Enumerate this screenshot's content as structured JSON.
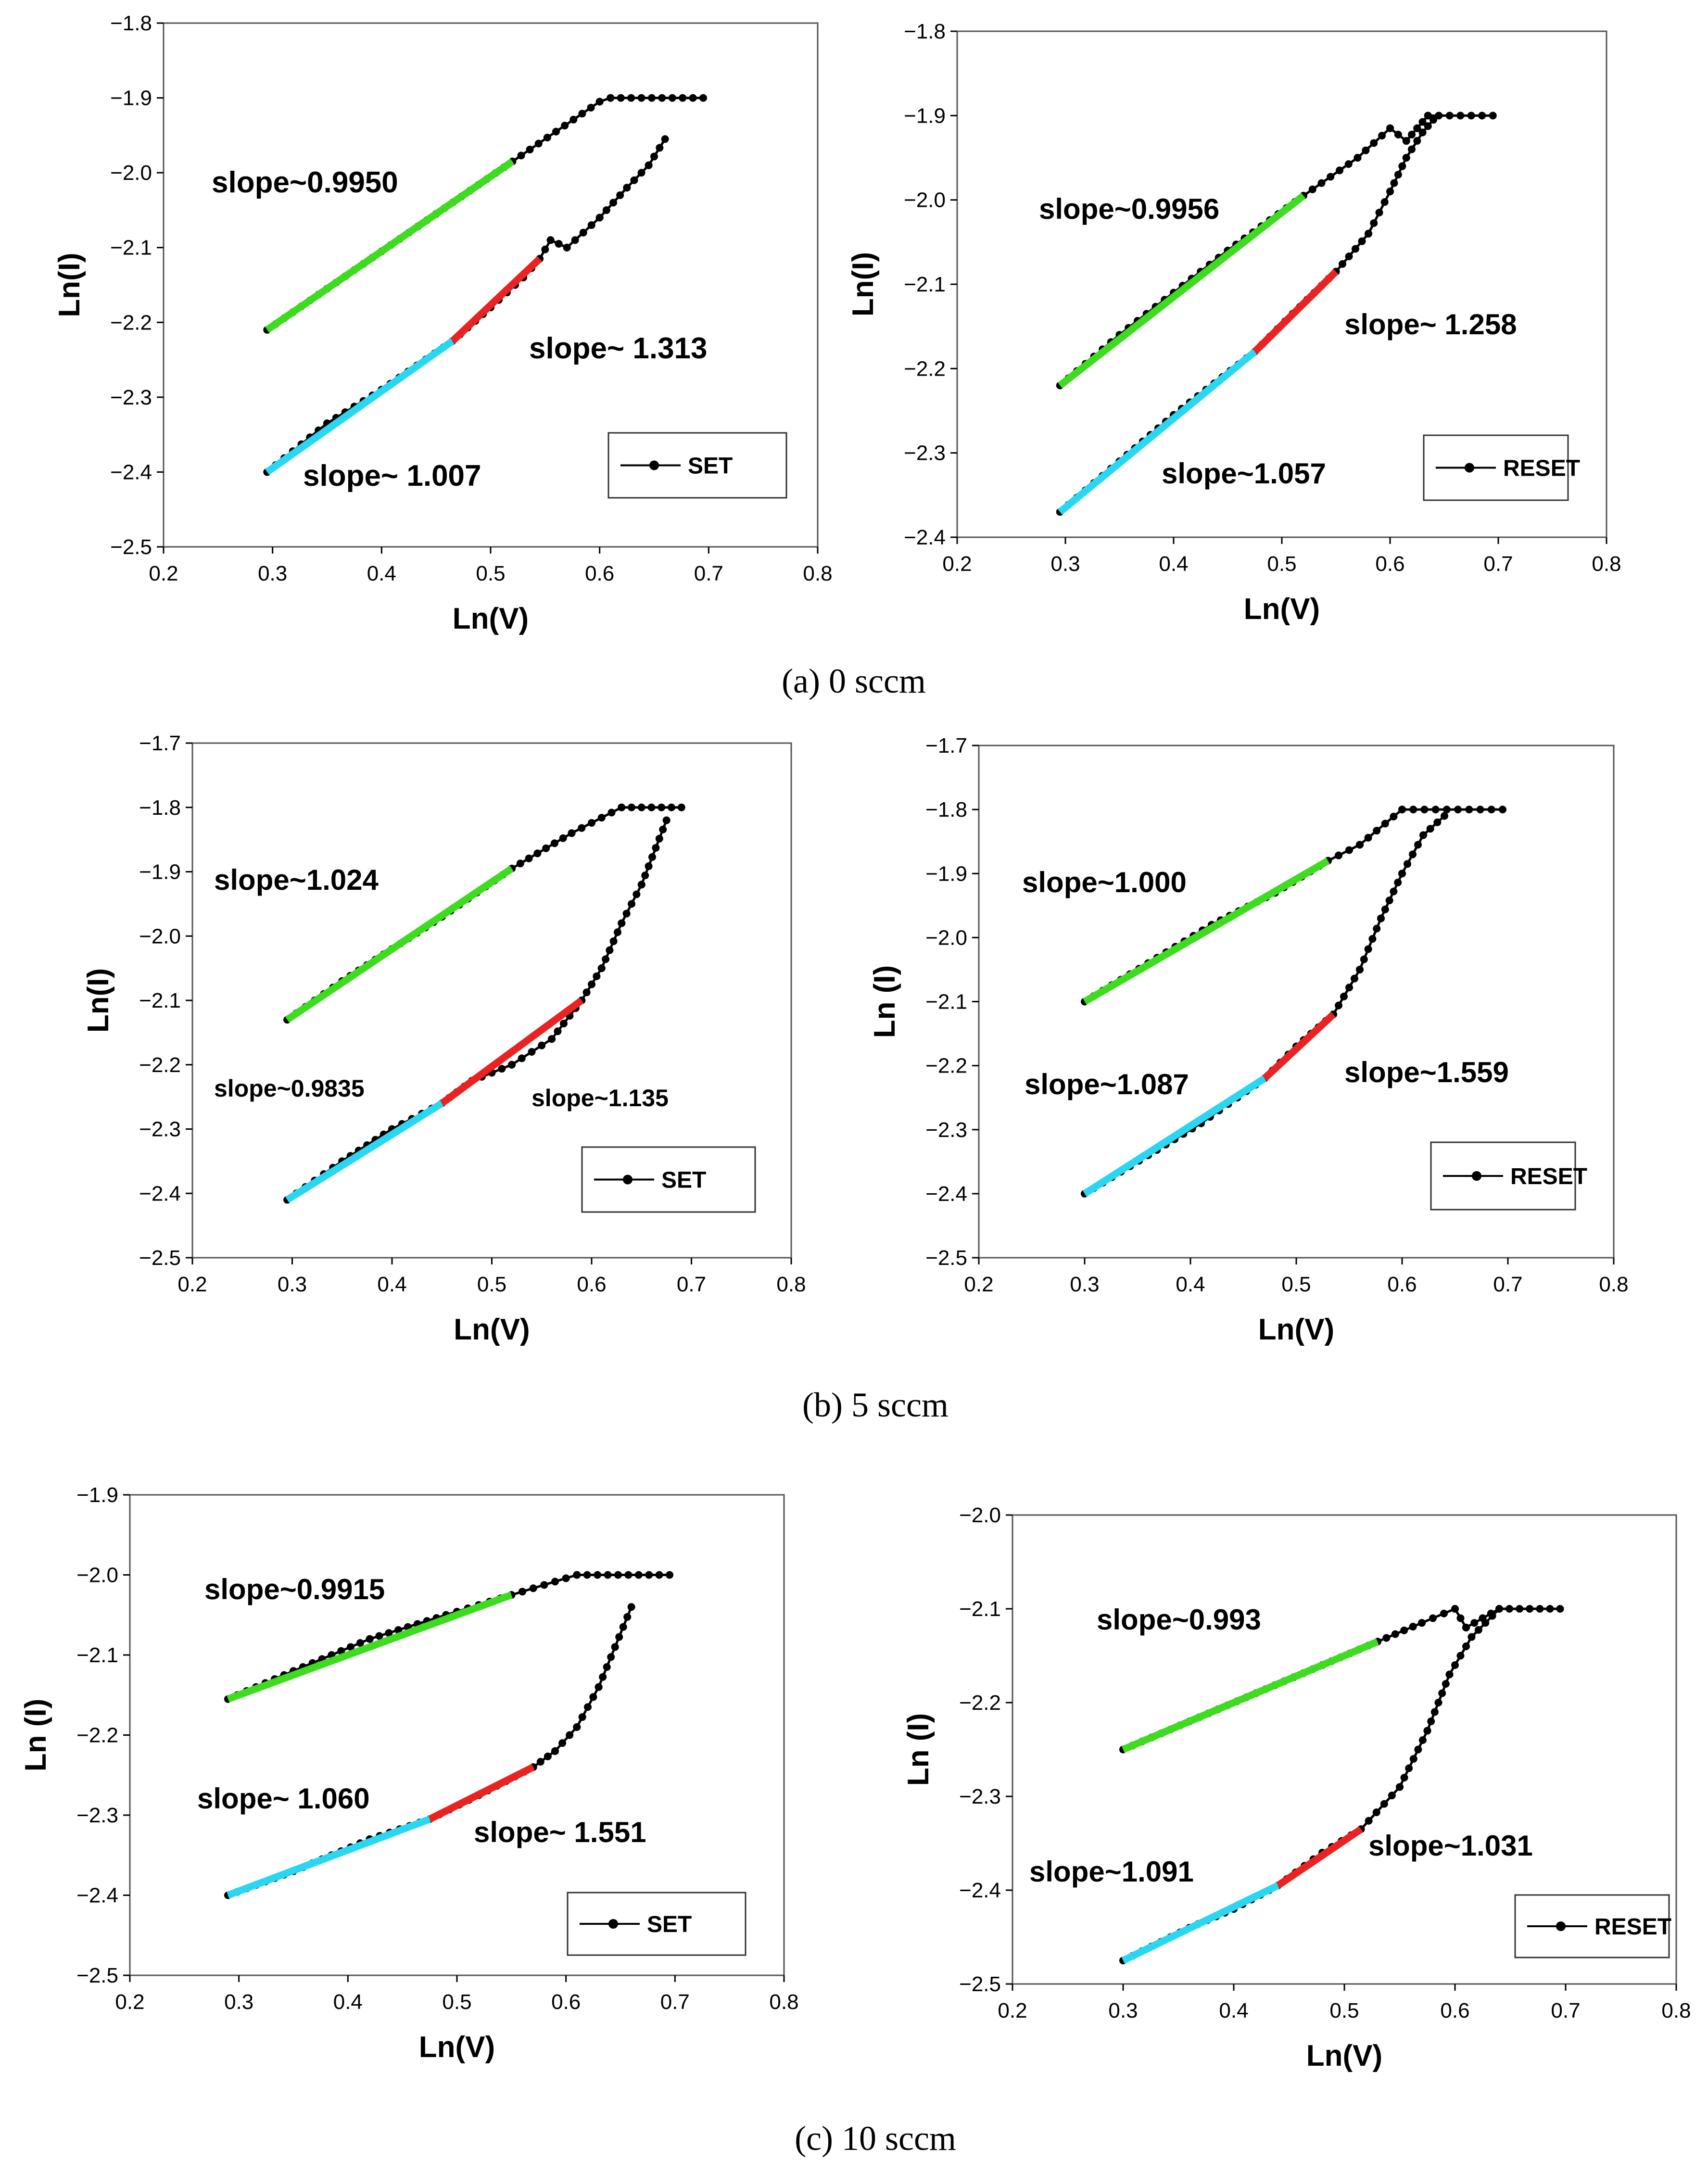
{
  "captions": [
    "(a) 0 sccm",
    "(b) 5 sccm",
    "(c) 10 sccm"
  ],
  "colors": {
    "green": "#3ddc1f",
    "red": "#ea2222",
    "cyan": "#29d7f2",
    "black": "#000000"
  },
  "chart_data": [
    {
      "type": "line",
      "name": "a-set",
      "xlabel": "Ln(V)",
      "ylabel": "Ln(I)",
      "xlim": [
        0.2,
        0.8
      ],
      "ylim": [
        -2.5,
        -1.8
      ],
      "xticks": [
        "0.2",
        "0.3",
        "0.4",
        "0.5",
        "0.6",
        "0.7",
        "0.8"
      ],
      "yticks": [
        "−1.8",
        "−1.9",
        "−2.0",
        "−2.1",
        "−2.2",
        "−2.3",
        "−2.4",
        "−2.5"
      ],
      "legend": "SET",
      "series": [
        {
          "name": "upper",
          "x": [
            0.295,
            0.35,
            0.4,
            0.45,
            0.52,
            0.6,
            0.61,
            0.695
          ],
          "y": [
            -2.21,
            -2.155,
            -2.105,
            -2.055,
            -1.985,
            -1.905,
            -1.9,
            -1.9
          ]
        },
        {
          "name": "lower",
          "x": [
            0.295,
            0.35,
            0.4,
            0.465,
            0.5,
            0.53,
            0.545,
            0.555,
            0.57,
            0.6,
            0.625,
            0.645,
            0.66
          ],
          "y": [
            -2.4,
            -2.335,
            -2.29,
            -2.225,
            -2.18,
            -2.14,
            -2.115,
            -2.09,
            -2.1,
            -2.06,
            -2.02,
            -1.99,
            -1.955
          ]
        }
      ],
      "fits": [
        {
          "color": "green",
          "x": [
            0.295,
            0.52
          ],
          "y": [
            -2.21,
            -1.985
          ],
          "label": "slope~0.9950"
        },
        {
          "color": "red",
          "x": [
            0.465,
            0.545
          ],
          "y": [
            -2.225,
            -2.115
          ],
          "label": "slope~ 1.313"
        },
        {
          "color": "cyan",
          "x": [
            0.295,
            0.465
          ],
          "y": [
            -2.4,
            -2.225
          ],
          "label": "slope~ 1.007"
        }
      ]
    },
    {
      "type": "line",
      "name": "a-reset",
      "xlabel": "Ln(V)",
      "ylabel": "Ln(I)",
      "xlim": [
        0.2,
        0.8
      ],
      "ylim": [
        -2.4,
        -1.8
      ],
      "xticks": [
        "0.2",
        "0.3",
        "0.4",
        "0.5",
        "0.6",
        "0.7",
        "0.8"
      ],
      "yticks": [
        "−1.8",
        "−1.9",
        "−2.0",
        "−2.1",
        "−2.2",
        "−2.3",
        "−2.4"
      ],
      "legend": "RESET",
      "series": [
        {
          "name": "upper",
          "x": [
            0.295,
            0.35,
            0.4,
            0.45,
            0.52,
            0.57,
            0.6,
            0.615,
            0.625,
            0.635,
            0.695
          ],
          "y": [
            -2.22,
            -2.16,
            -2.11,
            -2.06,
            -1.995,
            -1.95,
            -1.915,
            -1.93,
            -1.915,
            -1.9,
            -1.9
          ]
        },
        {
          "name": "lower",
          "x": [
            0.295,
            0.35,
            0.4,
            0.475,
            0.51,
            0.55,
            0.58,
            0.6,
            0.615,
            0.63,
            0.64
          ],
          "y": [
            -2.37,
            -2.31,
            -2.255,
            -2.18,
            -2.135,
            -2.085,
            -2.04,
            -1.99,
            -1.95,
            -1.92,
            -1.905
          ]
        }
      ],
      "fits": [
        {
          "color": "green",
          "x": [
            0.295,
            0.52
          ],
          "y": [
            -2.22,
            -1.995
          ],
          "label": "slope~0.9956"
        },
        {
          "color": "red",
          "x": [
            0.475,
            0.55
          ],
          "y": [
            -2.18,
            -2.085
          ],
          "label": "slope~ 1.258"
        },
        {
          "color": "cyan",
          "x": [
            0.295,
            0.475
          ],
          "y": [
            -2.37,
            -2.18
          ],
          "label": "slope~1.057"
        }
      ]
    },
    {
      "type": "line",
      "name": "b-set",
      "xlabel": "Ln(V)",
      "ylabel": "Ln(I)",
      "xlim": [
        0.2,
        0.8
      ],
      "ylim": [
        -2.5,
        -1.7
      ],
      "xticks": [
        "0.2",
        "0.3",
        "0.4",
        "0.5",
        "0.6",
        "0.7",
        "0.8"
      ],
      "yticks": [
        "−1.7",
        "−1.8",
        "−1.9",
        "−2.0",
        "−2.1",
        "−2.2",
        "−2.3",
        "−2.4",
        "−2.5"
      ],
      "legend": "SET",
      "series": [
        {
          "name": "upper",
          "x": [
            0.295,
            0.35,
            0.4,
            0.45,
            0.52,
            0.58,
            0.63,
            0.69
          ],
          "y": [
            -2.13,
            -2.07,
            -2.02,
            -1.97,
            -1.895,
            -1.84,
            -1.8,
            -1.8
          ]
        },
        {
          "name": "lower",
          "x": [
            0.295,
            0.35,
            0.4,
            0.45,
            0.48,
            0.52,
            0.56,
            0.59,
            0.61,
            0.63,
            0.65,
            0.675
          ],
          "y": [
            -2.41,
            -2.35,
            -2.3,
            -2.26,
            -2.225,
            -2.2,
            -2.16,
            -2.1,
            -2.05,
            -1.98,
            -1.92,
            -1.82
          ]
        }
      ],
      "fits": [
        {
          "color": "green",
          "x": [
            0.295,
            0.52
          ],
          "y": [
            -2.13,
            -1.895
          ],
          "label": "slope~1.024"
        },
        {
          "color": "red",
          "x": [
            0.45,
            0.59
          ],
          "y": [
            -2.26,
            -2.1
          ],
          "label": "slope~1.135"
        },
        {
          "color": "cyan",
          "x": [
            0.295,
            0.45
          ],
          "y": [
            -2.41,
            -2.26
          ],
          "label": "slope~0.9835"
        }
      ]
    },
    {
      "type": "line",
      "name": "b-reset",
      "xlabel": "Ln(V)",
      "ylabel": "Ln (I)",
      "xlim": [
        0.2,
        0.8
      ],
      "ylim": [
        -2.5,
        -1.7
      ],
      "xticks": [
        "0.2",
        "0.3",
        "0.4",
        "0.5",
        "0.6",
        "0.7",
        "0.8"
      ],
      "yticks": [
        "−1.7",
        "−1.8",
        "−1.9",
        "−2.0",
        "−2.1",
        "−2.2",
        "−2.3",
        "−2.4",
        "−2.5"
      ],
      "legend": "RESET",
      "series": [
        {
          "name": "upper",
          "x": [
            0.3,
            0.36,
            0.42,
            0.48,
            0.53,
            0.56,
            0.6,
            0.695
          ],
          "y": [
            -2.1,
            -2.04,
            -1.98,
            -1.93,
            -1.88,
            -1.855,
            -1.8,
            -1.8
          ]
        },
        {
          "name": "lower",
          "x": [
            0.3,
            0.36,
            0.41,
            0.47,
            0.5,
            0.535,
            0.56,
            0.58,
            0.6,
            0.62,
            0.64
          ],
          "y": [
            -2.4,
            -2.34,
            -2.29,
            -2.22,
            -2.17,
            -2.12,
            -2.05,
            -1.97,
            -1.9,
            -1.84,
            -1.81
          ]
        }
      ],
      "fits": [
        {
          "color": "green",
          "x": [
            0.3,
            0.53
          ],
          "y": [
            -2.1,
            -1.88
          ],
          "label": "slope~1.000"
        },
        {
          "color": "red",
          "x": [
            0.47,
            0.535
          ],
          "y": [
            -2.22,
            -2.12
          ],
          "label": "slope~1.559"
        },
        {
          "color": "cyan",
          "x": [
            0.3,
            0.47
          ],
          "y": [
            -2.4,
            -2.22
          ],
          "label": "slope~1.087"
        }
      ]
    },
    {
      "type": "line",
      "name": "c-set",
      "xlabel": "Ln(V)",
      "ylabel": "Ln (I)",
      "xlim": [
        0.2,
        0.8
      ],
      "ylim": [
        -2.5,
        -1.9
      ],
      "xticks": [
        "0.2",
        "0.3",
        "0.4",
        "0.5",
        "0.6",
        "0.7",
        "0.8"
      ],
      "yticks": [
        "−1.9",
        "−2.0",
        "−2.1",
        "−2.2",
        "−2.3",
        "−2.4",
        "−2.5"
      ],
      "legend": "SET",
      "series": [
        {
          "name": "upper",
          "x": [
            0.29,
            0.35,
            0.42,
            0.49,
            0.55,
            0.61,
            0.695
          ],
          "y": [
            -2.155,
            -2.12,
            -2.08,
            -2.05,
            -2.025,
            -2.0,
            -2.0
          ]
        },
        {
          "name": "lower",
          "x": [
            0.29,
            0.35,
            0.42,
            0.475,
            0.52,
            0.57,
            0.59,
            0.61,
            0.63,
            0.645,
            0.66
          ],
          "y": [
            -2.4,
            -2.37,
            -2.33,
            -2.305,
            -2.275,
            -2.24,
            -2.22,
            -2.19,
            -2.14,
            -2.09,
            -2.04
          ]
        }
      ],
      "fits": [
        {
          "color": "green",
          "x": [
            0.29,
            0.55
          ],
          "y": [
            -2.155,
            -2.025
          ],
          "label": "slope~0.9915"
        },
        {
          "color": "red",
          "x": [
            0.475,
            0.57
          ],
          "y": [
            -2.305,
            -2.24
          ],
          "label": "slope~ 1.551"
        },
        {
          "color": "cyan",
          "x": [
            0.29,
            0.475
          ],
          "y": [
            -2.4,
            -2.305
          ],
          "label": "slope~ 1.060"
        }
      ]
    },
    {
      "type": "line",
      "name": "c-reset",
      "xlabel": "Ln(V)",
      "ylabel": "Ln (I)",
      "xlim": [
        0.2,
        0.8
      ],
      "ylim": [
        -2.5,
        -2.0
      ],
      "xticks": [
        "0.2",
        "0.3",
        "0.4",
        "0.5",
        "0.6",
        "0.7",
        "0.8"
      ],
      "yticks": [
        "−2.0",
        "−2.1",
        "−2.2",
        "−2.3",
        "−2.4",
        "−2.5"
      ],
      "legend": "RESET",
      "series": [
        {
          "name": "upper",
          "x": [
            0.3,
            0.36,
            0.42,
            0.48,
            0.53,
            0.57,
            0.6,
            0.61,
            0.625,
            0.64,
            0.695
          ],
          "y": [
            -2.25,
            -2.22,
            -2.19,
            -2.16,
            -2.135,
            -2.115,
            -2.1,
            -2.12,
            -2.11,
            -2.1,
            -2.1
          ]
        },
        {
          "name": "lower",
          "x": [
            0.3,
            0.36,
            0.4,
            0.44,
            0.48,
            0.515,
            0.55,
            0.575,
            0.595,
            0.615,
            0.64
          ],
          "y": [
            -2.475,
            -2.44,
            -2.42,
            -2.395,
            -2.36,
            -2.335,
            -2.29,
            -2.23,
            -2.17,
            -2.13,
            -2.1
          ]
        }
      ],
      "fits": [
        {
          "color": "green",
          "x": [
            0.3,
            0.53
          ],
          "y": [
            -2.25,
            -2.135
          ],
          "label": "slope~0.993"
        },
        {
          "color": "red",
          "x": [
            0.44,
            0.515
          ],
          "y": [
            -2.395,
            -2.335
          ],
          "label": "slope~1.031"
        },
        {
          "color": "cyan",
          "x": [
            0.3,
            0.44
          ],
          "y": [
            -2.475,
            -2.395
          ],
          "label": "slope~1.091"
        }
      ]
    }
  ]
}
